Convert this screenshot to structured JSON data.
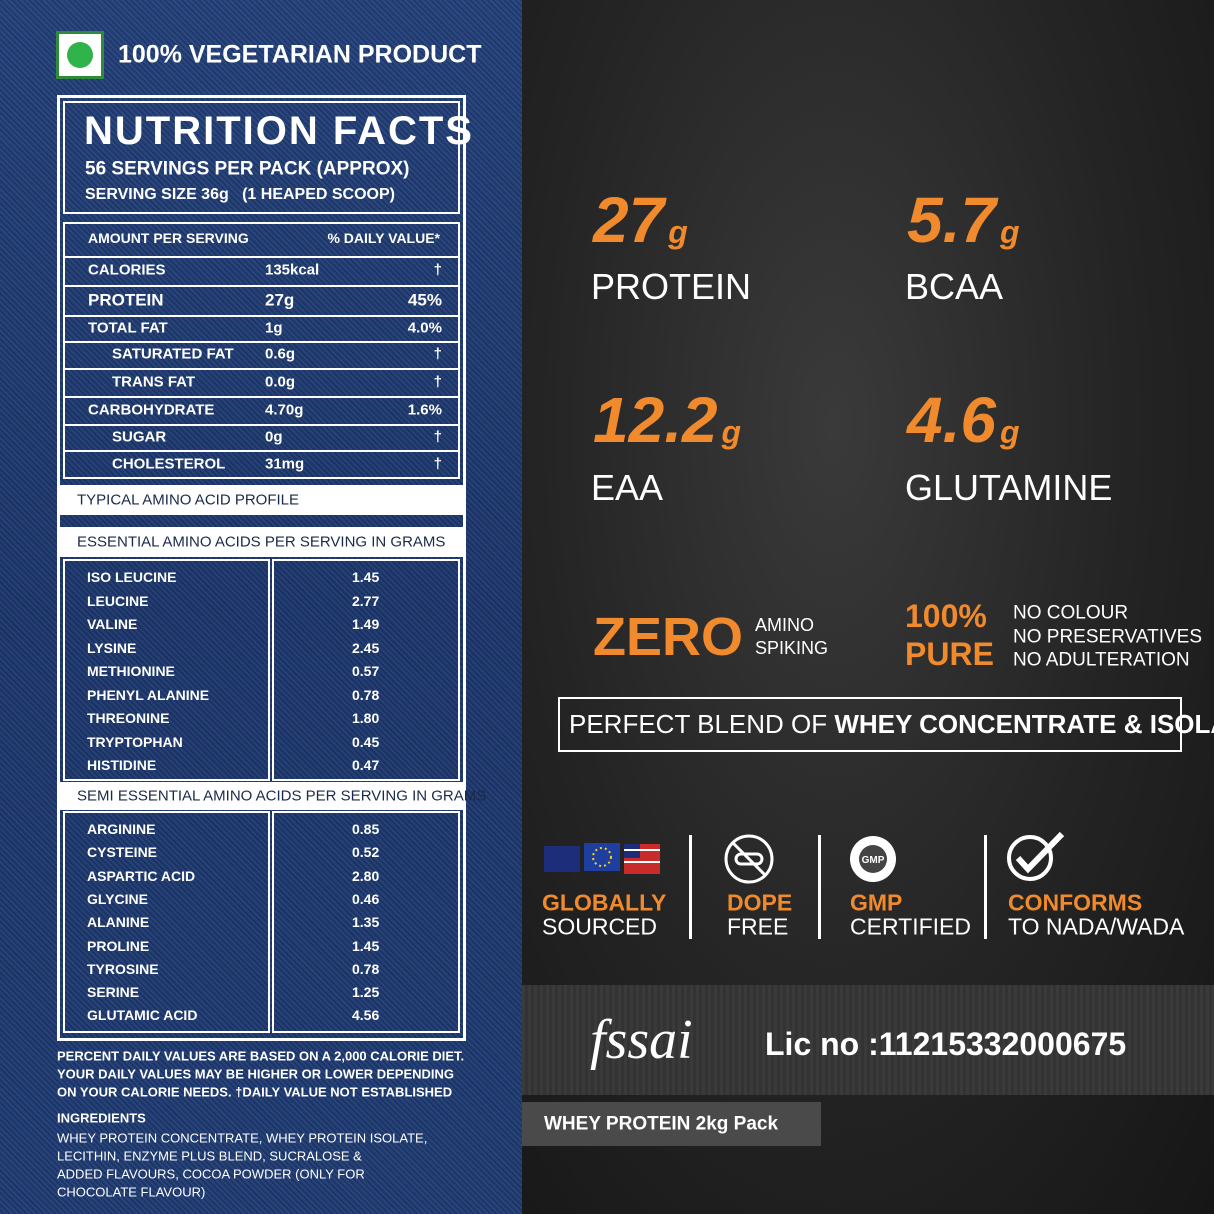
{
  "veg_badge": "100% VEGETARIAN PRODUCT",
  "nutrition": {
    "title": "NUTRITION FACTS",
    "servings": "56 SERVINGS PER PACK (APPROX)",
    "serving_size": "SERVING SIZE 36g   (1 HEAPED SCOOP)",
    "header": [
      "AMOUNT PER SERVING",
      "% DAILY VALUE*"
    ],
    "rows": [
      [
        "CALORIES",
        "135kcal",
        "†"
      ],
      [
        "PROTEIN",
        "27g",
        "45%"
      ],
      [
        "TOTAL FAT",
        "1g",
        "4.0%"
      ],
      [
        "SATURATED FAT",
        "0.6g",
        "†"
      ],
      [
        "TRANS FAT",
        "0.0g",
        "†"
      ],
      [
        "CARBOHYDRATE",
        "4.70g",
        "1.6%"
      ],
      [
        "SUGAR",
        "0g",
        "†"
      ],
      [
        "CHOLESTEROL",
        "31mg",
        "†"
      ]
    ]
  },
  "amino_profile_title": "TYPICAL AMINO ACID PROFILE",
  "essential": {
    "title": "ESSENTIAL AMINO ACIDS PER SERVING IN GRAMS",
    "rows": [
      [
        "ISO LEUCINE",
        "1.45"
      ],
      [
        "LEUCINE",
        "2.77"
      ],
      [
        "VALINE",
        "1.49"
      ],
      [
        "LYSINE",
        "2.45"
      ],
      [
        "METHIONINE",
        "0.57"
      ],
      [
        "PHENYL ALANINE",
        "0.78"
      ],
      [
        "THREONINE",
        "1.80"
      ],
      [
        "TRYPTOPHAN",
        "0.45"
      ],
      [
        "HISTIDINE",
        "0.47"
      ]
    ]
  },
  "semi_essential": {
    "title": "SEMI ESSENTIAL AMINO ACIDS PER SERVING IN GRAMS",
    "rows": [
      [
        "ARGININE",
        "0.85"
      ],
      [
        "CYSTEINE",
        "0.52"
      ],
      [
        "ASPARTIC ACID",
        "2.80"
      ],
      [
        "GLYCINE",
        "0.46"
      ],
      [
        "ALANINE",
        "1.35"
      ],
      [
        "PROLINE",
        "1.45"
      ],
      [
        "TYROSINE",
        "0.78"
      ],
      [
        "SERINE",
        "1.25"
      ],
      [
        "GLUTAMIC ACID",
        "4.56"
      ]
    ]
  },
  "footnote": [
    "PERCENT DAILY VALUES ARE BASED ON A 2,000 CALORIE DIET.",
    "YOUR DAILY VALUES MAY BE HIGHER OR LOWER DEPENDING",
    "ON YOUR CALORIE NEEDS. †DAILY VALUE NOT ESTABLISHED"
  ],
  "ingredients": {
    "title": "INGREDIENTS",
    "lines": [
      "WHEY PROTEIN CONCENTRATE, WHEY PROTEIN ISOLATE,",
      "LECITHIN, ENZYME PLUS BLEND, SUCRALOSE &",
      "ADDED FLAVOURS, COCOA POWDER (ONLY FOR",
      "CHOCOLATE FLAVOUR)"
    ]
  },
  "stats": [
    {
      "value": "27",
      "unit": "g",
      "label": "PROTEIN"
    },
    {
      "value": "5.7",
      "unit": "g",
      "label": "BCAA"
    },
    {
      "value": "12.2",
      "unit": "g",
      "label": "EAA"
    },
    {
      "value": "4.6",
      "unit": "g",
      "label": "GLUTAMINE"
    }
  ],
  "zero": {
    "big": "ZERO",
    "small": [
      "AMINO",
      "SPIKING"
    ]
  },
  "pure": {
    "big": [
      "100%",
      "PURE"
    ],
    "small": [
      "NO COLOUR",
      "NO PRESERVATIVES",
      "NO ADULTERATION"
    ]
  },
  "blend": {
    "plain": "PERFECT BLEND OF ",
    "bold": "WHEY CONCENTRATE & ISOLATE"
  },
  "badges": [
    {
      "top": "GLOBALLY",
      "bottom": "SOURCED"
    },
    {
      "top": "DOPE",
      "bottom": "FREE"
    },
    {
      "top": "GMP",
      "bottom": "CERTIFIED"
    },
    {
      "top": "CONFORMS",
      "bottom": "TO NADA/WADA"
    }
  ],
  "fssai": {
    "logo": "fssai",
    "license": "Lic no :11215332000675"
  },
  "pack": "WHEY PROTEIN 2kg Pack"
}
